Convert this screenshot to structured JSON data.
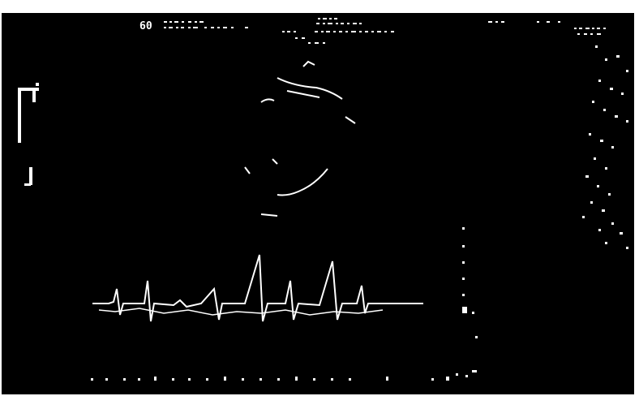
{
  "display": {
    "mode_label": "60",
    "background_color": "#000000",
    "foreground_color": "#ffffff"
  }
}
